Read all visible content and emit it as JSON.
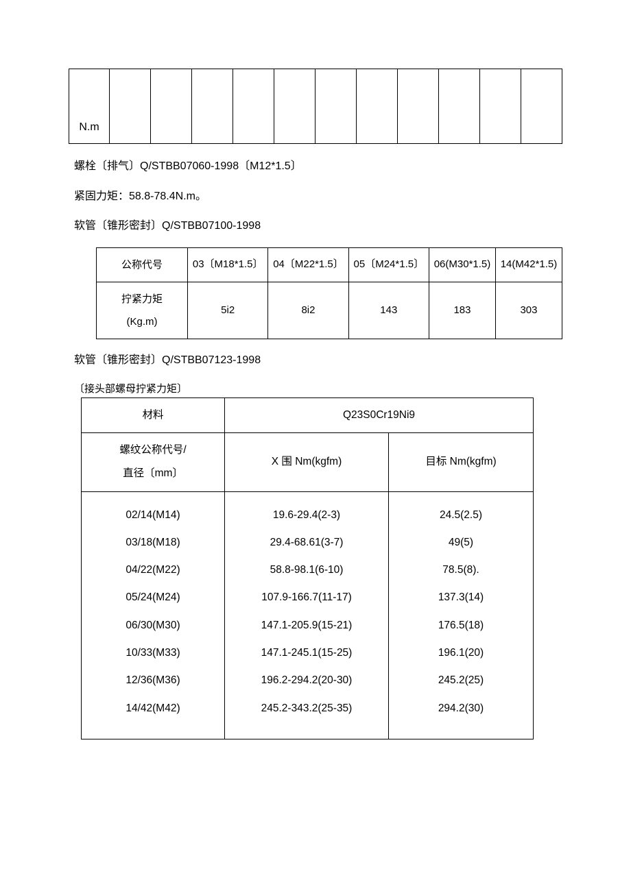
{
  "table_top": {
    "first_cell": "N.m",
    "empty_cols": 11
  },
  "line1": "螺栓〔排气〕Q/STBB07060-1998〔M12*1.5〕",
  "line2": "紧固力矩：58.8-78.4N.m。",
  "line3": "软管〔锥形密封〕Q/STBB07100-1998",
  "table2": {
    "row1_label": "公称代号",
    "row1_cells": [
      "03〔M18*1.5〕",
      "04〔M22*1.5〕",
      "05〔M24*1.5〕",
      "06(M30*1.5)",
      "14(M42*1.5)"
    ],
    "row2_label_a": "拧紧力矩",
    "row2_label_b": "(Kg.m)",
    "row2_cells": [
      "5i2",
      "8i2",
      "143",
      "183",
      "303"
    ]
  },
  "line4": "软管〔锥形密封〕Q/STBB07123-1998",
  "caption3": "〔接头部螺母拧紧力矩〕",
  "table3": {
    "material_label": "材料",
    "material_value": "Q23S0Cr19Ni9",
    "thread_label_a": "螺纹公称代号/",
    "thread_label_b": "直径〔mm〕",
    "range_header": "X 围 Nm(kgfm)",
    "target_header": "目标 Nm(kgfm)",
    "rows": [
      {
        "code": "02/14(M14)",
        "range": "19.6-29.4(2-3)",
        "target": "24.5(2.5)"
      },
      {
        "code": "03/18(M18)",
        "range": "29.4-68.61(3-7)",
        "target": "49(5)"
      },
      {
        "code": "04/22(M22)",
        "range": "58.8-98.1(6-10)",
        "target": "78.5(8)."
      },
      {
        "code": "05/24(M24)",
        "range": "107.9-166.7(11-17)",
        "target": "137.3(14)"
      },
      {
        "code": "06/30(M30)",
        "range": "147.1-205.9(15-21)",
        "target": "176.5(18)"
      },
      {
        "code": "10/33(M33)",
        "range": "147.1-245.1(15-25)",
        "target": "196.1(20)"
      },
      {
        "code": "12/36(M36)",
        "range": "196.2-294.2(20-30)",
        "target": "245.2(25)"
      },
      {
        "code": "14/42(M42)",
        "range": "245.2-343.2(25-35)",
        "target": "294.2(30)"
      }
    ]
  }
}
